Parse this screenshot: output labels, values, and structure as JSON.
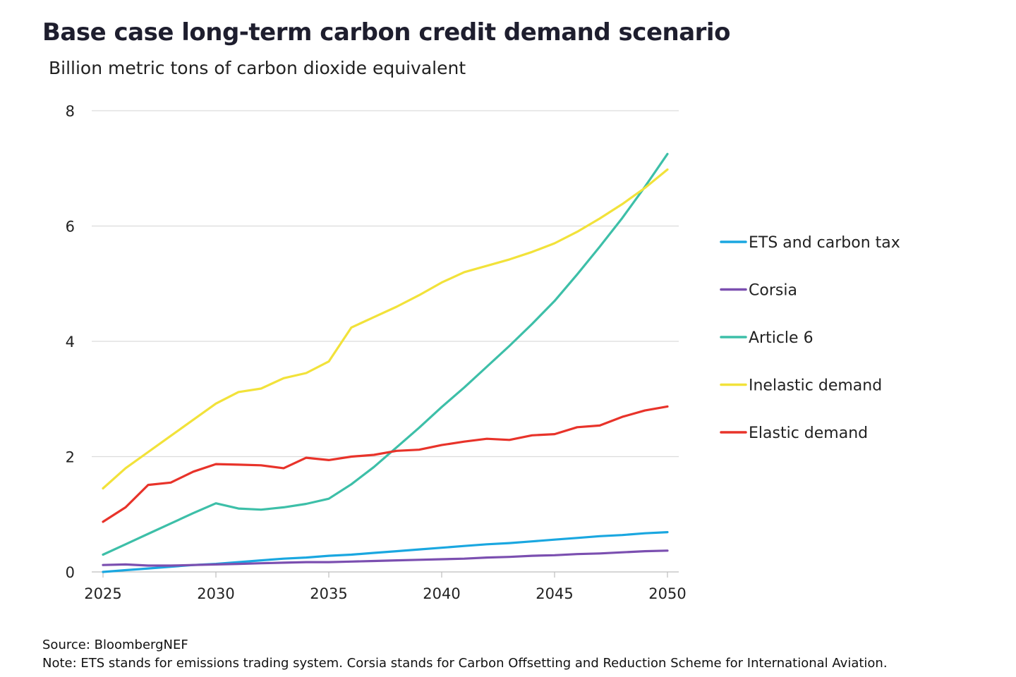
{
  "chart_data": {
    "type": "line",
    "title": "Base case long-term carbon credit demand scenario",
    "subtitle": "Billion metric tons of carbon dioxide equivalent",
    "xlabel": "",
    "ylabel": "",
    "xlim": [
      2025,
      2050
    ],
    "ylim": [
      0,
      8
    ],
    "x_ticks": [
      2025,
      2030,
      2035,
      2040,
      2045,
      2050
    ],
    "y_ticks": [
      0,
      2,
      4,
      6,
      8
    ],
    "grid": "horizontal",
    "legend_position": "right",
    "x": [
      2025,
      2026,
      2027,
      2028,
      2029,
      2030,
      2031,
      2032,
      2033,
      2034,
      2035,
      2036,
      2037,
      2038,
      2039,
      2040,
      2041,
      2042,
      2043,
      2044,
      2045,
      2046,
      2047,
      2048,
      2049,
      2050
    ],
    "series": [
      {
        "name": "ETS and carbon tax",
        "color": "#1aa7e0",
        "values": [
          0.0,
          0.03,
          0.06,
          0.09,
          0.12,
          0.14,
          0.17,
          0.2,
          0.23,
          0.25,
          0.28,
          0.3,
          0.33,
          0.36,
          0.39,
          0.42,
          0.45,
          0.48,
          0.5,
          0.53,
          0.56,
          0.59,
          0.62,
          0.64,
          0.67,
          0.69
        ]
      },
      {
        "name": "Corsia",
        "color": "#7b4fb0",
        "values": [
          0.12,
          0.13,
          0.11,
          0.11,
          0.12,
          0.13,
          0.14,
          0.15,
          0.16,
          0.17,
          0.17,
          0.18,
          0.19,
          0.2,
          0.21,
          0.22,
          0.23,
          0.25,
          0.26,
          0.28,
          0.29,
          0.31,
          0.32,
          0.34,
          0.36,
          0.37
        ]
      },
      {
        "name": "Article 6",
        "color": "#3dbfa8",
        "values": [
          0.3,
          0.48,
          0.66,
          0.84,
          1.02,
          1.19,
          1.1,
          1.08,
          1.12,
          1.18,
          1.27,
          1.52,
          1.82,
          2.16,
          2.5,
          2.86,
          3.2,
          3.56,
          3.92,
          4.3,
          4.7,
          5.16,
          5.64,
          6.14,
          6.68,
          7.25
        ]
      },
      {
        "name": "Inelastic demand",
        "color": "#f2e23a",
        "values": [
          1.45,
          1.8,
          2.08,
          2.36,
          2.64,
          2.92,
          3.12,
          3.18,
          3.36,
          3.45,
          3.65,
          4.24,
          4.42,
          4.6,
          4.8,
          5.02,
          5.2,
          5.31,
          5.42,
          5.55,
          5.7,
          5.9,
          6.13,
          6.38,
          6.66,
          6.98
        ]
      },
      {
        "name": "Elastic demand",
        "color": "#e8332a",
        "values": [
          0.87,
          1.12,
          1.51,
          1.55,
          1.74,
          1.87,
          1.86,
          1.85,
          1.8,
          1.98,
          1.94,
          2.0,
          2.03,
          2.1,
          2.12,
          2.2,
          2.26,
          2.31,
          2.29,
          2.37,
          2.39,
          2.51,
          2.54,
          2.69,
          2.8,
          2.87
        ]
      }
    ]
  },
  "source": "Source: BloombergNEF",
  "note": "Note: ETS stands for emissions trading system. Corsia stands for Carbon Offsetting and Reduction Scheme for International Aviation."
}
